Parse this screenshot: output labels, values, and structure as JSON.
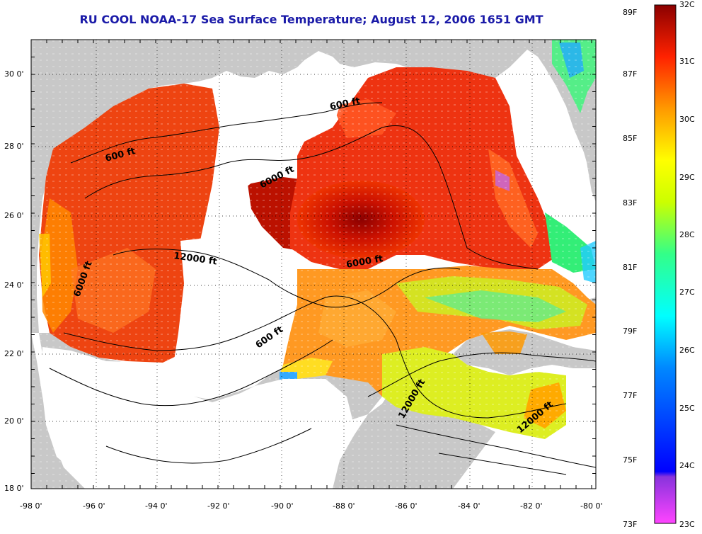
{
  "title": "RU COOL  NOAA-17  Sea Surface Temperature;  August 12, 2006 1651 GMT",
  "lat_ticks": [
    "30 0'",
    "28 0'",
    "26 0'",
    "24 0'",
    "22 0'",
    "20 0'",
    "18 0'"
  ],
  "lon_ticks": [
    "-98 0'",
    "-96 0'",
    "-94 0'",
    "-92 0'",
    "-90 0'",
    "-88 0'",
    "-86 0'",
    "-84 0'",
    "-82 0'",
    "-80 0'"
  ],
  "colorbar": {
    "fahrenheit": [
      "89F",
      "87F",
      "85F",
      "83F",
      "81F",
      "79F",
      "77F",
      "75F",
      "73F"
    ],
    "celsius": [
      "32C",
      "31C",
      "30C",
      "29C",
      "28C",
      "27C",
      "26C",
      "25C",
      "24C",
      "23C"
    ],
    "gradient_colors": [
      "#ff44ff",
      "#8833dd",
      "#0000ff",
      "#0088ff",
      "#00ffff",
      "#33ff88",
      "#ccff00",
      "#ffff00",
      "#ff9900",
      "#ff3300",
      "#cc0000",
      "#8b0000"
    ]
  },
  "contour_labels": [
    "600 ft",
    "600 ft",
    "6000 ft",
    "12000 ft",
    "6000 ft",
    "6000 ft",
    "600 ft",
    "12000 ft",
    "12000 ft"
  ],
  "map_colors": {
    "land": "#c8c8c8",
    "no_data": "#ffffff",
    "frame": "#000000",
    "grid": "#000000"
  }
}
